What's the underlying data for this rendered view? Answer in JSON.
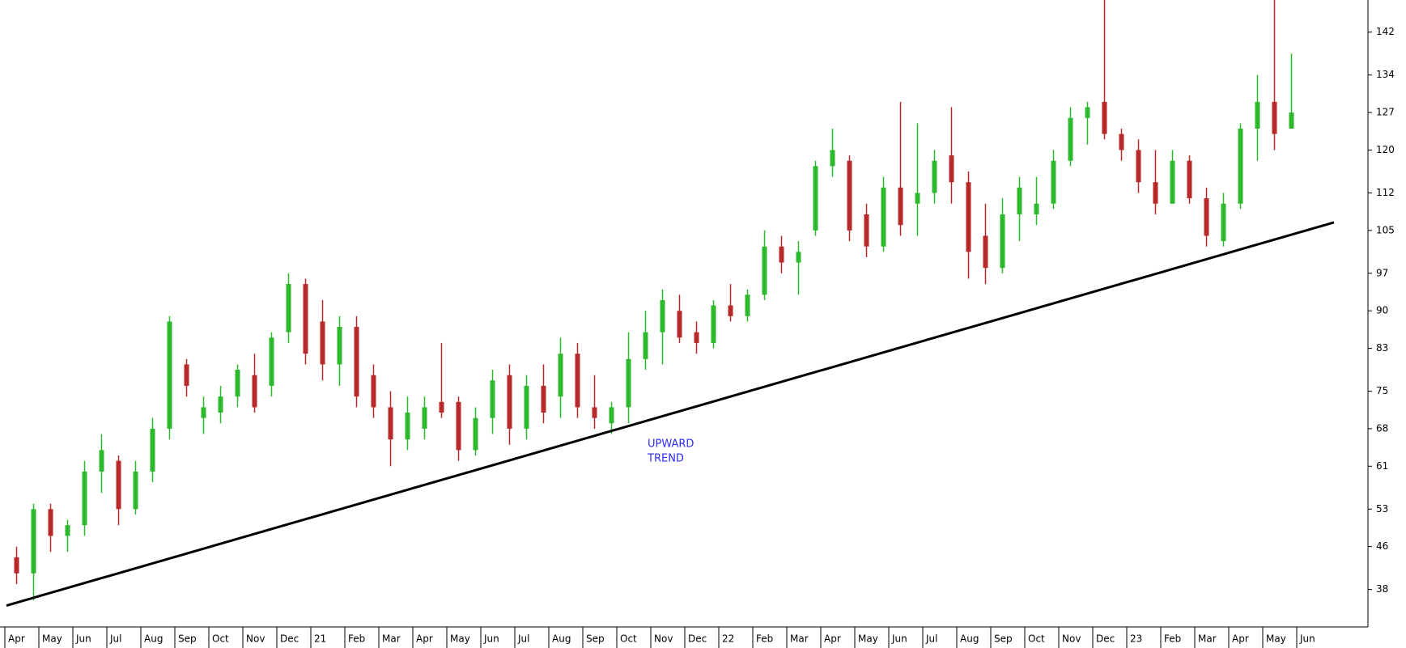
{
  "chart_data": {
    "type": "candlestick",
    "categories": [
      "Apr",
      null,
      "May",
      null,
      "Jun",
      null,
      "Jul",
      null,
      "Aug",
      null,
      "Sep",
      null,
      "Oct",
      null,
      "Nov",
      null,
      "Dec",
      null,
      "21",
      null,
      "Feb",
      null,
      "Mar",
      null,
      "Apr",
      null,
      "May",
      null,
      "Jun",
      null,
      "Jul",
      null,
      "Aug",
      null,
      "Sep",
      null,
      "Oct",
      null,
      "Nov",
      null,
      "Dec",
      null,
      "22",
      null,
      "Feb",
      null,
      "Mar",
      null,
      "Apr",
      null,
      "May",
      null,
      "Jun",
      null,
      "Jul",
      null,
      "Aug",
      null,
      "Sep",
      null,
      "Oct",
      null,
      "Nov",
      null,
      "Dec",
      null,
      "23",
      null,
      "Feb",
      null,
      "Mar",
      null,
      "Apr",
      null,
      "May",
      null,
      "Jun",
      null
    ],
    "open": [
      44,
      41,
      53,
      48,
      50,
      60,
      62,
      53,
      60,
      68,
      80,
      70,
      71,
      74,
      78,
      76,
      86,
      95,
      88,
      80,
      87,
      78,
      72,
      66,
      68,
      73,
      73,
      64,
      70,
      78,
      68,
      76,
      74,
      82,
      72,
      69,
      72,
      81,
      86,
      90,
      86,
      84,
      91,
      89,
      93,
      102,
      99,
      105,
      117,
      118,
      108,
      102,
      113,
      110,
      112,
      119,
      114,
      104,
      98,
      108,
      108,
      110,
      118,
      126,
      129,
      123,
      120,
      114,
      110,
      118,
      111,
      103,
      110,
      124,
      129,
      124,
      null,
      null
    ],
    "high": [
      46,
      54,
      54,
      51,
      62,
      67,
      63,
      62,
      70,
      89,
      81,
      74,
      76,
      80,
      82,
      86,
      97,
      96,
      92,
      89,
      89,
      80,
      75,
      74,
      74,
      84,
      74,
      72,
      79,
      80,
      78,
      80,
      85,
      84,
      78,
      73,
      86,
      90,
      94,
      93,
      88,
      92,
      95,
      94,
      105,
      104,
      103,
      118,
      124,
      119,
      110,
      115,
      129,
      125,
      120,
      128,
      116,
      110,
      111,
      115,
      115,
      120,
      128,
      129,
      148,
      124,
      122,
      120,
      120,
      119,
      113,
      112,
      125,
      134,
      148,
      138,
      null,
      null
    ],
    "low": [
      39,
      36,
      45,
      45,
      48,
      56,
      50,
      52,
      58,
      66,
      74,
      67,
      69,
      72,
      71,
      74,
      84,
      80,
      77,
      76,
      72,
      70,
      61,
      64,
      66,
      70,
      62,
      63,
      67,
      65,
      66,
      69,
      70,
      70,
      68,
      67,
      69,
      79,
      80,
      84,
      82,
      83,
      88,
      88,
      92,
      97,
      93,
      104,
      115,
      103,
      100,
      101,
      104,
      104,
      110,
      110,
      96,
      95,
      97,
      103,
      106,
      109,
      117,
      121,
      122,
      118,
      112,
      108,
      110,
      110,
      102,
      102,
      109,
      118,
      120,
      124,
      null,
      null
    ],
    "close": [
      41,
      53,
      48,
      50,
      60,
      64,
      53,
      60,
      68,
      88,
      76,
      72,
      74,
      79,
      72,
      85,
      95,
      82,
      80,
      87,
      74,
      72,
      66,
      71,
      72,
      71,
      64,
      70,
      77,
      68,
      76,
      71,
      82,
      72,
      70,
      72,
      81,
      86,
      92,
      85,
      84,
      91,
      89,
      93,
      102,
      99,
      101,
      117,
      120,
      105,
      102,
      113,
      106,
      112,
      118,
      114,
      101,
      98,
      108,
      113,
      110,
      118,
      126,
      128,
      123,
      120,
      114,
      110,
      118,
      111,
      104,
      110,
      124,
      129,
      123,
      127,
      null,
      null
    ],
    "up_color": "#2db82d",
    "down_color": "#b82a2a",
    "ylim": [
      31,
      148
    ],
    "yticks": [
      38,
      46,
      53,
      61,
      68,
      75,
      83,
      90,
      97,
      105,
      112,
      120,
      127,
      134,
      142
    ],
    "trend_line": {
      "start": 35,
      "end": 106.5,
      "color": "#000000"
    },
    "annotation": [
      "UPWARD",
      "TREND"
    ],
    "annotation_color": "#2b2bff"
  }
}
